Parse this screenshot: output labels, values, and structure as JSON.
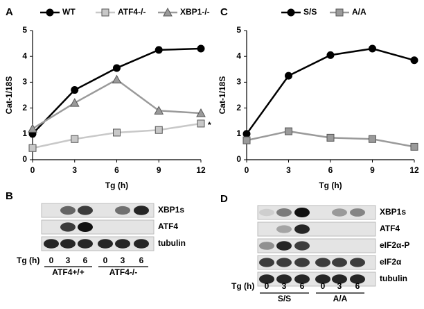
{
  "chart_data": [
    {
      "type": "line",
      "panel": "A",
      "x": [
        0,
        3,
        6,
        9,
        12
      ],
      "xlabel": "Tg (h)",
      "ylabel": "Cat-1/18S",
      "xlim": [
        0,
        12
      ],
      "xticks": [
        0,
        3,
        6,
        9,
        12
      ],
      "ylim": [
        0,
        5
      ],
      "yticks": [
        0,
        1,
        2,
        3,
        4,
        5
      ],
      "annotation": "*",
      "series": [
        {
          "name": "WT",
          "color": "#000000",
          "marker": "circle",
          "values": [
            1.0,
            2.7,
            3.55,
            4.25,
            4.3
          ]
        },
        {
          "name": "ATF4-/-",
          "color": "#c8c8c8",
          "marker": "square",
          "values": [
            0.45,
            0.8,
            1.05,
            1.15,
            1.4
          ]
        },
        {
          "name": "XBP1-/-",
          "color": "#9a9a9a",
          "marker": "triangle",
          "values": [
            1.2,
            2.2,
            3.1,
            1.9,
            1.8
          ]
        }
      ]
    },
    {
      "type": "line",
      "panel": "C",
      "x": [
        0,
        3,
        6,
        9,
        12
      ],
      "xlabel": "Tg (h)",
      "ylabel": "Cat-1/18S",
      "xlim": [
        0,
        12
      ],
      "xticks": [
        0,
        3,
        6,
        9,
        12
      ],
      "ylim": [
        0,
        5
      ],
      "yticks": [
        0,
        1,
        2,
        3,
        4,
        5
      ],
      "series": [
        {
          "name": "S/S",
          "color": "#000000",
          "marker": "circle",
          "values": [
            1.0,
            3.25,
            4.05,
            4.3,
            3.85
          ]
        },
        {
          "name": "A/A",
          "color": "#9a9a9a",
          "marker": "square",
          "values": [
            0.75,
            1.1,
            0.85,
            0.8,
            0.5
          ]
        }
      ]
    }
  ],
  "blots": [
    {
      "panel": "B",
      "rows": [
        "XBP1s",
        "ATF4",
        "tubulin"
      ],
      "axis_label": "Tg (h)",
      "lanes": [
        "0",
        "3",
        "6",
        "0",
        "3",
        "6"
      ],
      "groups": [
        "ATF4+/+",
        "ATF4-/-"
      ]
    },
    {
      "panel": "D",
      "rows": [
        "XBP1s",
        "ATF4",
        "eIF2α-P",
        "eIF2α",
        "tubulin"
      ],
      "axis_label": "Tg (h)",
      "lanes": [
        "0",
        "3",
        "6",
        "0",
        "3",
        "6"
      ],
      "groups": [
        "S/S",
        "A/A"
      ]
    }
  ]
}
